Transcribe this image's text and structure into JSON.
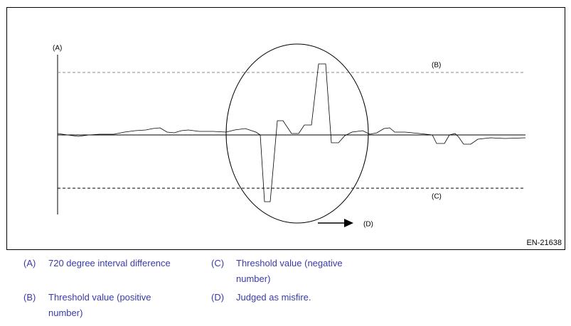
{
  "diagram": {
    "labels": {
      "a": "(A)",
      "b": "(B)",
      "c": "(C)",
      "d": "(D)"
    },
    "figure_id": "EN-21638"
  },
  "legend": [
    {
      "key": "(A)",
      "text": "720 degree interval difference"
    },
    {
      "key": "(B)",
      "text": "Threshold value (positive number)"
    },
    {
      "key": "(C)",
      "text": "Threshold value (negative number)"
    },
    {
      "key": "(D)",
      "text": "Judged as misfire."
    }
  ]
}
